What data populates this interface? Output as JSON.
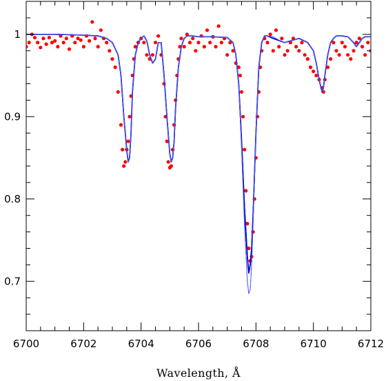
{
  "chart_data": {
    "type": "scatter",
    "title": "",
    "xlabel": "Wavelength, Å",
    "ylabel": "",
    "xlim": [
      6700,
      6712
    ],
    "ylim": [
      0.64,
      1.04
    ],
    "grid": false,
    "legend": "none",
    "x_ticks": [
      "6700",
      "6702",
      "6704",
      "6706",
      "6708",
      "6710",
      "6712"
    ],
    "y_ticks": [
      "0.7",
      "0.8",
      "0.9",
      "1"
    ],
    "series": [
      {
        "kind": "points",
        "color": "#ff0000",
        "x": [
          6700.0,
          6700.1,
          6700.2,
          6700.3,
          6700.4,
          6700.5,
          6700.6,
          6700.7,
          6700.8,
          6700.9,
          6701.0,
          6701.1,
          6701.2,
          6701.3,
          6701.4,
          6701.5,
          6701.6,
          6701.7,
          6701.8,
          6701.9,
          6702.0,
          6702.1,
          6702.2,
          6702.3,
          6702.4,
          6702.5,
          6702.6,
          6702.7,
          6702.8,
          6702.9,
          6703.0,
          6703.1,
          6703.2,
          6703.3,
          6703.35,
          6703.4,
          6703.45,
          6703.5,
          6703.55,
          6703.6,
          6703.65,
          6703.7,
          6703.75,
          6703.8,
          6703.9,
          6704.0,
          6704.1,
          6704.2,
          6704.3,
          6704.4,
          6704.5,
          6704.6,
          6704.7,
          6704.8,
          6704.85,
          6704.9,
          6704.95,
          6705.0,
          6705.05,
          6705.1,
          6705.15,
          6705.2,
          6705.25,
          6705.3,
          6705.35,
          6705.4,
          6705.5,
          6705.6,
          6705.7,
          6705.8,
          6705.9,
          6706.0,
          6706.1,
          6706.2,
          6706.3,
          6706.4,
          6706.5,
          6706.6,
          6706.7,
          6706.8,
          6706.9,
          6707.0,
          6707.1,
          6707.2,
          6707.3,
          6707.4,
          6707.45,
          6707.5,
          6707.55,
          6707.6,
          6707.65,
          6707.7,
          6707.75,
          6707.8,
          6707.85,
          6707.9,
          6707.95,
          6708.0,
          6708.05,
          6708.1,
          6708.15,
          6708.2,
          6708.3,
          6708.4,
          6708.5,
          6708.6,
          6708.7,
          6708.8,
          6708.9,
          6709.0,
          6709.1,
          6709.2,
          6709.3,
          6709.4,
          6709.5,
          6709.6,
          6709.7,
          6709.8,
          6709.9,
          6710.0,
          6710.1,
          6710.2,
          6710.3,
          6710.35,
          6710.4,
          6710.5,
          6710.6,
          6710.7,
          6710.8,
          6710.9,
          6711.0,
          6711.1,
          6711.2,
          6711.3,
          6711.4,
          6711.5,
          6711.6,
          6711.7,
          6711.8,
          6711.9,
          6712.0
        ],
        "y": [
          0.985,
          0.99,
          1.0,
          0.996,
          0.99,
          0.984,
          0.995,
          0.988,
          0.996,
          0.99,
          0.992,
          0.985,
          0.998,
          0.99,
          0.995,
          0.982,
          0.998,
          0.99,
          0.995,
          0.993,
          0.985,
          0.998,
          0.992,
          1.015,
          0.995,
          0.985,
          1.005,
          0.995,
          0.99,
          0.98,
          0.97,
          0.96,
          0.93,
          0.89,
          0.86,
          0.84,
          0.845,
          0.86,
          0.87,
          0.9,
          0.925,
          0.95,
          0.97,
          0.985,
          0.99,
          0.995,
          0.99,
          0.975,
          0.97,
          0.975,
          0.99,
          0.998,
          0.975,
          0.94,
          0.9,
          0.87,
          0.845,
          0.838,
          0.84,
          0.86,
          0.89,
          0.92,
          0.95,
          0.97,
          0.985,
          0.995,
          0.985,
          1.0,
          0.99,
          0.995,
          0.98,
          0.99,
          0.998,
          0.985,
          1.005,
          0.99,
          0.997,
          0.985,
          1.01,
          0.99,
          0.995,
          0.975,
          0.99,
          0.98,
          0.965,
          0.96,
          0.95,
          0.93,
          0.9,
          0.86,
          0.81,
          0.77,
          0.74,
          0.725,
          0.73,
          0.76,
          0.8,
          0.85,
          0.9,
          0.93,
          0.96,
          0.98,
          0.995,
          0.99,
          1.0,
          0.98,
          1.005,
          0.985,
          0.995,
          0.975,
          0.98,
          0.99,
          0.995,
          0.985,
          0.98,
          0.99,
          0.975,
          0.97,
          0.96,
          0.955,
          0.95,
          0.945,
          0.935,
          0.93,
          0.945,
          0.96,
          0.97,
          0.99,
          0.98,
          0.975,
          0.99,
          0.985,
          0.975,
          0.97,
          0.98,
          0.99,
          0.995,
          0.985,
          0.975,
          0.99,
          0.98
        ]
      },
      {
        "kind": "line",
        "color": "#0000cc",
        "x": [
          6700.0,
          6701.0,
          6702.0,
          6702.5,
          6702.8,
          6703.0,
          6703.2,
          6703.3,
          6703.4,
          6703.5,
          6703.55,
          6703.6,
          6703.65,
          6703.7,
          6703.8,
          6703.9,
          6704.0,
          6704.1,
          6704.2,
          6704.3,
          6704.4,
          6704.5,
          6704.6,
          6704.7,
          6704.8,
          6704.9,
          6705.0,
          6705.05,
          6705.1,
          6705.15,
          6705.2,
          6705.3,
          6705.4,
          6705.5,
          6705.6,
          6705.8,
          6706.0,
          6706.5,
          6707.0,
          6707.2,
          6707.3,
          6707.4,
          6707.5,
          6707.6,
          6707.7,
          6707.75,
          6707.8,
          6707.85,
          6707.9,
          6708.0,
          6708.1,
          6708.2,
          6708.3,
          6708.4,
          6708.6,
          6709.0,
          6709.5,
          6709.8,
          6710.0,
          6710.1,
          6710.2,
          6710.3,
          6710.35,
          6710.4,
          6710.5,
          6710.6,
          6710.7,
          6710.8,
          6711.0,
          6711.2,
          6711.4,
          6711.5,
          6711.6,
          6711.7,
          6711.8,
          6712.0
        ],
        "y": [
          1.0,
          1.0,
          0.999,
          0.998,
          0.995,
          0.99,
          0.975,
          0.95,
          0.9,
          0.86,
          0.845,
          0.85,
          0.88,
          0.93,
          0.975,
          0.99,
          0.995,
          0.998,
          0.992,
          0.975,
          0.965,
          0.97,
          0.99,
          0.99,
          0.95,
          0.9,
          0.855,
          0.845,
          0.85,
          0.87,
          0.91,
          0.96,
          0.985,
          0.995,
          0.998,
          0.998,
          0.997,
          0.997,
          0.996,
          0.99,
          0.975,
          0.94,
          0.87,
          0.79,
          0.73,
          0.71,
          0.72,
          0.74,
          0.78,
          0.88,
          0.96,
          0.99,
          0.998,
          0.998,
          0.995,
          0.99,
          0.995,
          0.99,
          0.98,
          0.965,
          0.945,
          0.93,
          0.935,
          0.95,
          0.975,
          0.99,
          0.995,
          0.998,
          0.998,
          0.997,
          0.99,
          0.985,
          0.99,
          0.995,
          0.997,
          0.997
        ]
      },
      {
        "kind": "line",
        "color": "#5566ee",
        "x": [
          6700.0,
          6701.0,
          6702.0,
          6702.5,
          6702.8,
          6703.0,
          6703.2,
          6703.3,
          6703.4,
          6703.5,
          6703.55,
          6703.6,
          6703.65,
          6703.7,
          6703.8,
          6703.9,
          6704.0,
          6704.1,
          6704.2,
          6704.3,
          6704.4,
          6704.5,
          6704.6,
          6704.7,
          6704.8,
          6704.9,
          6705.0,
          6705.05,
          6705.1,
          6705.15,
          6705.2,
          6705.3,
          6705.4,
          6705.5,
          6705.6,
          6705.8,
          6706.0,
          6706.5,
          6707.0,
          6707.2,
          6707.3,
          6707.4,
          6707.5,
          6707.6,
          6707.7,
          6707.75,
          6707.8,
          6707.85,
          6707.9,
          6708.0,
          6708.1,
          6708.2,
          6708.3,
          6708.4,
          6708.6,
          6708.8,
          6709.0,
          6709.5,
          6709.8,
          6710.0,
          6710.1,
          6710.2,
          6710.3,
          6710.35,
          6710.4,
          6710.5,
          6710.6,
          6710.7,
          6710.8,
          6711.0,
          6711.2,
          6711.4,
          6711.5,
          6711.6,
          6711.7,
          6711.8,
          6712.0
        ],
        "y": [
          1.0,
          1.0,
          0.999,
          0.998,
          0.995,
          0.99,
          0.975,
          0.95,
          0.9,
          0.86,
          0.845,
          0.85,
          0.88,
          0.93,
          0.975,
          0.99,
          0.995,
          0.998,
          0.992,
          0.975,
          0.965,
          0.97,
          0.99,
          0.99,
          0.95,
          0.9,
          0.855,
          0.845,
          0.85,
          0.87,
          0.91,
          0.96,
          0.985,
          0.995,
          0.998,
          0.998,
          0.997,
          0.997,
          0.996,
          0.99,
          0.975,
          0.94,
          0.86,
          0.77,
          0.7,
          0.685,
          0.69,
          0.72,
          0.77,
          0.88,
          0.96,
          0.99,
          0.998,
          0.998,
          0.997,
          0.993,
          0.99,
          0.995,
          0.99,
          0.98,
          0.965,
          0.945,
          0.93,
          0.935,
          0.95,
          0.975,
          0.99,
          0.995,
          0.998,
          0.998,
          0.997,
          0.99,
          0.985,
          0.99,
          0.995,
          0.997,
          0.997
        ]
      }
    ]
  }
}
